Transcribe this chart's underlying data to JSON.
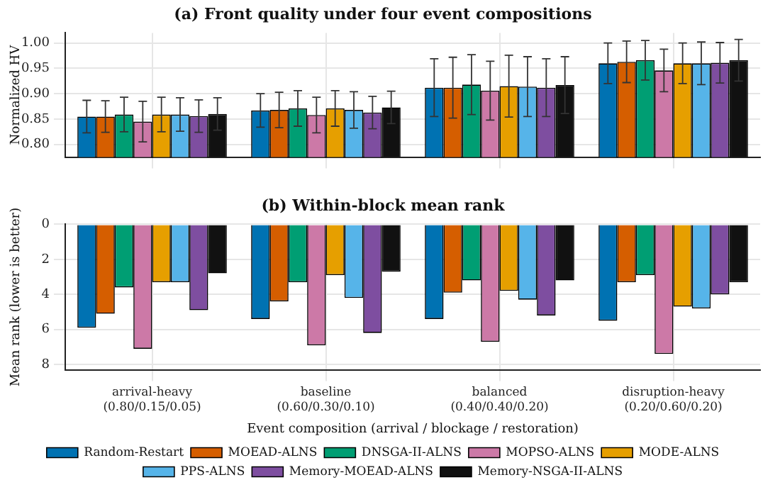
{
  "chart_data": [
    {
      "type": "bar",
      "title": "(a) Front quality under four event compositions",
      "ylabel": "Normalized HV",
      "categories": [
        null,
        null,
        null,
        null
      ],
      "ylim": [
        0.775,
        1.02
      ],
      "yticks": [
        {
          "value": 0.8,
          "label": "0.80"
        },
        {
          "value": 0.85,
          "label": "0.85"
        },
        {
          "value": 0.9,
          "label": "0.90"
        },
        {
          "value": 0.95,
          "label": "0.95"
        },
        {
          "value": 1.0,
          "label": "1.00"
        }
      ],
      "grid": true,
      "legend": false,
      "series": [
        {
          "color": "#0072b2",
          "values": [
            0.855,
            0.867,
            0.912,
            0.96
          ],
          "errors": [
            0.032,
            0.033,
            0.057,
            0.04
          ]
        },
        {
          "color": "#d55e00",
          "values": [
            0.855,
            0.868,
            0.912,
            0.963
          ],
          "errors": [
            0.031,
            0.035,
            0.06,
            0.041
          ]
        },
        {
          "color": "#009e73",
          "values": [
            0.859,
            0.871,
            0.918,
            0.966
          ],
          "errors": [
            0.034,
            0.035,
            0.059,
            0.039
          ]
        },
        {
          "color": "#cc79a7",
          "values": [
            0.845,
            0.858,
            0.906,
            0.946
          ],
          "errors": [
            0.04,
            0.035,
            0.058,
            0.042
          ]
        },
        {
          "color": "#e69f00",
          "values": [
            0.859,
            0.871,
            0.915,
            0.96
          ],
          "errors": [
            0.034,
            0.035,
            0.061,
            0.04
          ]
        },
        {
          "color": "#56b4e9",
          "values": [
            0.859,
            0.868,
            0.914,
            0.96
          ],
          "errors": [
            0.033,
            0.036,
            0.059,
            0.042
          ]
        },
        {
          "color": "#7e4ea0",
          "values": [
            0.856,
            0.863,
            0.912,
            0.961
          ],
          "errors": [
            0.032,
            0.032,
            0.057,
            0.04
          ]
        },
        {
          "color": "#111111",
          "values": [
            0.86,
            0.873,
            0.917,
            0.966
          ],
          "errors": [
            0.032,
            0.032,
            0.056,
            0.041
          ]
        }
      ]
    },
    {
      "type": "bar",
      "title": "(b) Within-block mean rank",
      "ylabel": "Mean rank (lower is better)",
      "xlabel": "Event composition (arrival / blockage / restoration)",
      "categories": [
        "arrival-heavy\n(0.80/0.15/0.05)",
        "baseline\n(0.60/0.30/0.10)",
        "balanced\n(0.40/0.40/0.20)",
        "disruption-heavy\n(0.20/0.60/0.20)"
      ],
      "ylim": [
        8.3,
        0
      ],
      "yticks": [
        0,
        2,
        4,
        6,
        8
      ],
      "grid": true,
      "legend": "bottom",
      "series": [
        {
          "name": "Random-Restart",
          "color": "#0072b2",
          "values": [
            5.9,
            5.4,
            5.4,
            5.5
          ]
        },
        {
          "name": "MOEAD-ALNS",
          "color": "#d55e00",
          "values": [
            5.1,
            4.4,
            3.9,
            3.3
          ]
        },
        {
          "name": "DNSGA-II-ALNS",
          "color": "#009e73",
          "values": [
            3.6,
            3.3,
            3.2,
            2.9
          ]
        },
        {
          "name": "MOPSO-ALNS",
          "color": "#cc79a7",
          "values": [
            7.1,
            6.9,
            6.7,
            7.4
          ]
        },
        {
          "name": "MODE-ALNS",
          "color": "#e69f00",
          "values": [
            3.3,
            2.9,
            3.8,
            4.7
          ]
        },
        {
          "name": "PPS-ALNS",
          "color": "#56b4e9",
          "values": [
            3.3,
            4.2,
            4.3,
            4.8
          ]
        },
        {
          "name": "Memory-MOEAD-ALNS",
          "color": "#7e4ea0",
          "values": [
            4.9,
            6.2,
            5.2,
            4.0
          ]
        },
        {
          "name": "Memory-NSGA-II-ALNS",
          "color": "#111111",
          "values": [
            2.8,
            2.7,
            3.2,
            3.3
          ]
        }
      ]
    }
  ]
}
